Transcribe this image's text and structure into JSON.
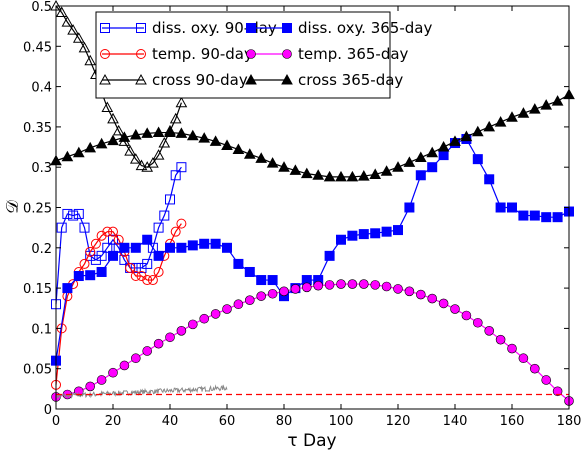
{
  "chart_data": {
    "type": "line",
    "xlabel": "τ Day",
    "ylabel": "𝒟",
    "xlim": [
      0,
      180
    ],
    "ylim": [
      0,
      0.5
    ],
    "x_ticks": [
      0,
      20,
      40,
      60,
      80,
      100,
      120,
      140,
      160,
      180
    ],
    "x_tick_labels": [
      "0",
      "20",
      "40",
      "60",
      "80",
      "100",
      "120",
      "140",
      "160",
      "180"
    ],
    "y_ticks": [
      0,
      0.05,
      0.1,
      0.15,
      0.2,
      0.25,
      0.3,
      0.35,
      0.4,
      0.45,
      0.5
    ],
    "y_tick_labels": [
      "0",
      "0.05",
      "0.1",
      "0.15",
      "0.2",
      "0.25",
      "0.3",
      "0.35",
      "0.4",
      "0.45",
      "0.5"
    ],
    "grid": false,
    "legend_position": "top-center",
    "series": [
      {
        "name": "diss. oxy. 90-day",
        "color": "#0000ff",
        "marker": "square-open",
        "x": [
          0,
          2,
          4,
          6,
          8,
          10,
          12,
          14,
          16,
          18,
          20,
          22,
          24,
          26,
          28,
          30,
          32,
          34,
          36,
          38,
          40,
          42,
          44
        ],
        "y": [
          0.13,
          0.225,
          0.242,
          0.24,
          0.242,
          0.225,
          0.19,
          0.185,
          0.19,
          0.2,
          0.21,
          0.2,
          0.185,
          0.175,
          0.175,
          0.175,
          0.18,
          0.2,
          0.225,
          0.24,
          0.26,
          0.29,
          0.3
        ]
      },
      {
        "name": "temp. 90-day",
        "color": "#ff0000",
        "marker": "circle-open",
        "x": [
          0,
          2,
          4,
          6,
          8,
          10,
          12,
          14,
          16,
          18,
          20,
          22,
          24,
          26,
          28,
          30,
          32,
          34,
          36,
          38,
          40,
          42,
          44
        ],
        "y": [
          0.03,
          0.1,
          0.14,
          0.155,
          0.17,
          0.18,
          0.195,
          0.205,
          0.215,
          0.22,
          0.22,
          0.21,
          0.195,
          0.175,
          0.165,
          0.165,
          0.16,
          0.16,
          0.17,
          0.19,
          0.205,
          0.22,
          0.23
        ]
      },
      {
        "name": "cross 90-day",
        "color": "#000000",
        "marker": "triangle-open",
        "x": [
          0,
          2,
          4,
          6,
          8,
          10,
          12,
          14,
          16,
          18,
          20,
          22,
          24,
          26,
          28,
          30,
          32,
          34,
          36,
          38,
          40,
          42,
          44
        ],
        "y": [
          0.5,
          0.492,
          0.48,
          0.47,
          0.46,
          0.448,
          0.432,
          0.415,
          0.393,
          0.374,
          0.36,
          0.345,
          0.332,
          0.32,
          0.31,
          0.302,
          0.3,
          0.305,
          0.315,
          0.33,
          0.345,
          0.36,
          0.38
        ]
      },
      {
        "name": "diss. oxy. 365-day",
        "color": "#0000ff",
        "marker": "square-filled",
        "x": [
          0,
          4,
          8,
          12,
          16,
          20,
          24,
          28,
          32,
          36,
          40,
          44,
          48,
          52,
          56,
          60,
          64,
          68,
          72,
          76,
          80,
          84,
          88,
          92,
          96,
          100,
          104,
          108,
          112,
          116,
          120,
          124,
          128,
          132,
          136,
          140,
          144,
          148,
          152,
          156,
          160,
          164,
          168,
          172,
          176,
          180
        ],
        "y": [
          0.06,
          0.15,
          0.165,
          0.166,
          0.17,
          0.19,
          0.2,
          0.2,
          0.21,
          0.19,
          0.2,
          0.2,
          0.203,
          0.205,
          0.205,
          0.2,
          0.18,
          0.17,
          0.16,
          0.16,
          0.14,
          0.15,
          0.16,
          0.16,
          0.19,
          0.21,
          0.215,
          0.217,
          0.218,
          0.22,
          0.222,
          0.25,
          0.29,
          0.3,
          0.315,
          0.33,
          0.335,
          0.31,
          0.285,
          0.25,
          0.25,
          0.24,
          0.24,
          0.238,
          0.238,
          0.245
        ]
      },
      {
        "name": "temp. 365-day",
        "color": "#ff00ff",
        "marker": "circle-filled",
        "x": [
          0,
          4,
          8,
          12,
          16,
          20,
          24,
          28,
          32,
          36,
          40,
          44,
          48,
          52,
          56,
          60,
          64,
          68,
          72,
          76,
          80,
          84,
          88,
          92,
          96,
          100,
          104,
          108,
          112,
          116,
          120,
          124,
          128,
          132,
          136,
          140,
          144,
          148,
          152,
          156,
          160,
          164,
          168,
          172,
          176,
          180
        ],
        "y": [
          0.015,
          0.018,
          0.022,
          0.028,
          0.036,
          0.045,
          0.054,
          0.063,
          0.072,
          0.081,
          0.089,
          0.097,
          0.105,
          0.112,
          0.118,
          0.124,
          0.13,
          0.135,
          0.14,
          0.143,
          0.146,
          0.149,
          0.151,
          0.153,
          0.154,
          0.155,
          0.155,
          0.155,
          0.154,
          0.152,
          0.149,
          0.146,
          0.142,
          0.137,
          0.131,
          0.124,
          0.116,
          0.107,
          0.097,
          0.086,
          0.075,
          0.063,
          0.05,
          0.036,
          0.022,
          0.01
        ]
      },
      {
        "name": "cross 365-day",
        "color": "#000000",
        "marker": "triangle-filled",
        "x": [
          0,
          4,
          8,
          12,
          16,
          20,
          24,
          28,
          32,
          36,
          40,
          44,
          48,
          52,
          56,
          60,
          64,
          68,
          72,
          76,
          80,
          84,
          88,
          92,
          96,
          100,
          104,
          108,
          112,
          116,
          120,
          124,
          128,
          132,
          136,
          140,
          144,
          148,
          152,
          156,
          160,
          164,
          168,
          172,
          176,
          180
        ],
        "y": [
          0.308,
          0.313,
          0.318,
          0.324,
          0.329,
          0.333,
          0.337,
          0.34,
          0.342,
          0.343,
          0.343,
          0.342,
          0.339,
          0.336,
          0.332,
          0.327,
          0.322,
          0.316,
          0.311,
          0.305,
          0.3,
          0.296,
          0.292,
          0.29,
          0.288,
          0.288,
          0.288,
          0.289,
          0.291,
          0.295,
          0.3,
          0.306,
          0.312,
          0.318,
          0.325,
          0.332,
          0.338,
          0.344,
          0.35,
          0.356,
          0.362,
          0.367,
          0.372,
          0.377,
          0.382,
          0.39
        ]
      },
      {
        "color": "#888888",
        "marker": "none",
        "style": "noisy",
        "x": [
          0,
          60
        ],
        "y": [
          0.016,
          0.026
        ]
      },
      {
        "color": "#ff0000",
        "marker": "none",
        "style": "dashed",
        "x": [
          0,
          180
        ],
        "y": [
          0.018,
          0.018
        ]
      }
    ]
  }
}
